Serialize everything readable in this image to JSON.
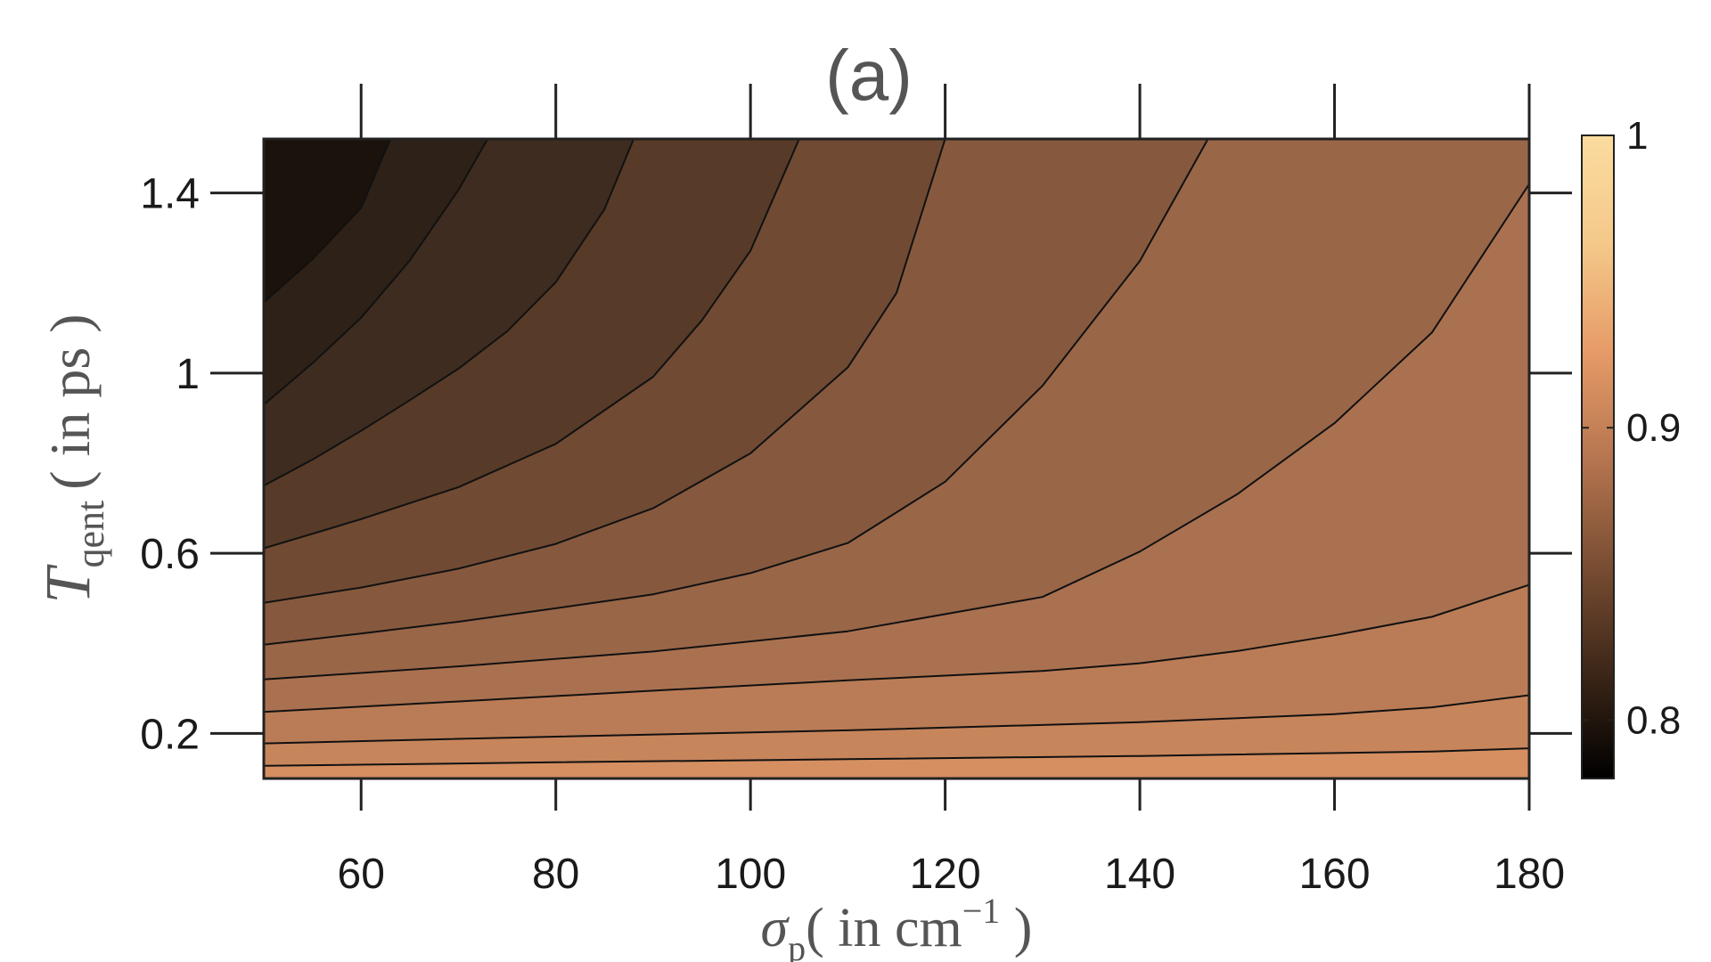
{
  "chart_data": {
    "type": "contour",
    "title": "(a)",
    "xlabel": {
      "symbol": "σ",
      "subscript": "p",
      "unit_open": "( in cm",
      "superscript": "−1",
      "unit_close": " )"
    },
    "ylabel": {
      "symbol": "T",
      "subscript": "qent",
      "unit": "( in ps )"
    },
    "xlim": [
      50,
      180
    ],
    "ylim": [
      0.1,
      1.52
    ],
    "x_ticks": [
      {
        "value": 60,
        "label": "60"
      },
      {
        "value": 80,
        "label": "80"
      },
      {
        "value": 100,
        "label": "100"
      },
      {
        "value": 120,
        "label": "120"
      },
      {
        "value": 140,
        "label": "140"
      },
      {
        "value": 160,
        "label": "160"
      },
      {
        "value": 180,
        "label": "180"
      }
    ],
    "y_ticks": [
      {
        "value": 0.2,
        "label": "0.2"
      },
      {
        "value": 0.6,
        "label": "0.6"
      },
      {
        "value": 1.0,
        "label": "1"
      },
      {
        "value": 1.4,
        "label": "1.4"
      }
    ],
    "colorbar": {
      "range": [
        0.78,
        1.0
      ],
      "ticks": [
        {
          "value": 0.8,
          "label": "0.8"
        },
        {
          "value": 0.9,
          "label": "0.9"
        },
        {
          "value": 1.0,
          "label": "1"
        }
      ],
      "colormap": "copper",
      "color_stops": [
        "#000000",
        "#3d2718",
        "#7a4e33",
        "#b77650",
        "#e79c68",
        "#f4c98a",
        "#fbdc9f"
      ]
    },
    "regions": [
      {
        "fill": "#1a120b"
      },
      {
        "fill": "#2e2118"
      },
      {
        "fill": "#3e2c20"
      },
      {
        "fill": "#573b28"
      },
      {
        "fill": "#704a33"
      },
      {
        "fill": "#86593e"
      },
      {
        "fill": "#996648"
      },
      {
        "fill": "#aa7150"
      },
      {
        "fill": "#ba7c56"
      },
      {
        "fill": "#c7855c"
      },
      {
        "fill": "#d58f61"
      },
      {
        "fill": "#e29966"
      },
      {
        "fill": "#eb9d69"
      }
    ],
    "contours": [
      {
        "points": [
          [
            50,
            1.157
          ],
          [
            55,
            1.253
          ],
          [
            60,
            1.367
          ],
          [
            63,
            1.52
          ]
        ]
      },
      {
        "points": [
          [
            50,
            0.93
          ],
          [
            55,
            1.022
          ],
          [
            60,
            1.123
          ],
          [
            65,
            1.25
          ],
          [
            70,
            1.407
          ],
          [
            73,
            1.52
          ]
        ]
      },
      {
        "points": [
          [
            50,
            0.75
          ],
          [
            55,
            0.808
          ],
          [
            60,
            0.872
          ],
          [
            65,
            0.94
          ],
          [
            70,
            1.01
          ],
          [
            75,
            1.093
          ],
          [
            80,
            1.202
          ],
          [
            85,
            1.364
          ],
          [
            88,
            1.52
          ]
        ]
      },
      {
        "points": [
          [
            50,
            0.611
          ],
          [
            60,
            0.676
          ],
          [
            70,
            0.747
          ],
          [
            80,
            0.843
          ],
          [
            90,
            0.992
          ],
          [
            95,
            1.117
          ],
          [
            100,
            1.272
          ],
          [
            105,
            1.52
          ]
        ]
      },
      {
        "points": [
          [
            50,
            0.49
          ],
          [
            60,
            0.524
          ],
          [
            70,
            0.566
          ],
          [
            80,
            0.621
          ],
          [
            90,
            0.7
          ],
          [
            100,
            0.822
          ],
          [
            110,
            1.013
          ],
          [
            115,
            1.178
          ],
          [
            120,
            1.52
          ]
        ]
      },
      {
        "points": [
          [
            50,
            0.397
          ],
          [
            60,
            0.422
          ],
          [
            70,
            0.448
          ],
          [
            80,
            0.478
          ],
          [
            90,
            0.509
          ],
          [
            100,
            0.556
          ],
          [
            110,
            0.623
          ],
          [
            120,
            0.759
          ],
          [
            130,
            0.972
          ],
          [
            140,
            1.249
          ],
          [
            147,
            1.52
          ]
        ]
      },
      {
        "points": [
          [
            50,
            0.32
          ],
          [
            70,
            0.349
          ],
          [
            90,
            0.382
          ],
          [
            110,
            0.427
          ],
          [
            130,
            0.503
          ],
          [
            140,
            0.604
          ],
          [
            150,
            0.731
          ],
          [
            160,
            0.889
          ],
          [
            170,
            1.09
          ],
          [
            180,
            1.42
          ]
        ]
      },
      {
        "points": [
          [
            50,
            0.248
          ],
          [
            70,
            0.271
          ],
          [
            90,
            0.295
          ],
          [
            110,
            0.318
          ],
          [
            130,
            0.339
          ],
          [
            140,
            0.356
          ],
          [
            150,
            0.383
          ],
          [
            160,
            0.418
          ],
          [
            170,
            0.459
          ],
          [
            180,
            0.53
          ]
        ]
      },
      {
        "points": [
          [
            50,
            0.178
          ],
          [
            80,
            0.193
          ],
          [
            110,
            0.207
          ],
          [
            140,
            0.225
          ],
          [
            160,
            0.243
          ],
          [
            170,
            0.258
          ],
          [
            180,
            0.285
          ]
        ]
      },
      {
        "points": [
          [
            50,
            0.128
          ],
          [
            80,
            0.136
          ],
          [
            110,
            0.143
          ],
          [
            140,
            0.15
          ],
          [
            170,
            0.16
          ],
          [
            180,
            0.167
          ]
        ]
      }
    ],
    "grid": false
  }
}
